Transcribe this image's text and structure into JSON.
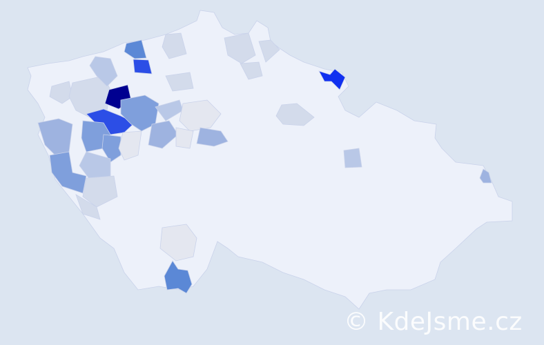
{
  "watermark": "© KdeJsme.cz",
  "colors": {
    "background": "#dce5f1",
    "base_region": "#edf1fa",
    "border": "#c9d2ea",
    "scale": [
      "#e4e7f0",
      "#d3dbeb",
      "#b9c8e7",
      "#9eb3e0",
      "#7f9fdc",
      "#5b88d6",
      "#2c4ee6",
      "#1030f0",
      "#000090"
    ]
  }
}
